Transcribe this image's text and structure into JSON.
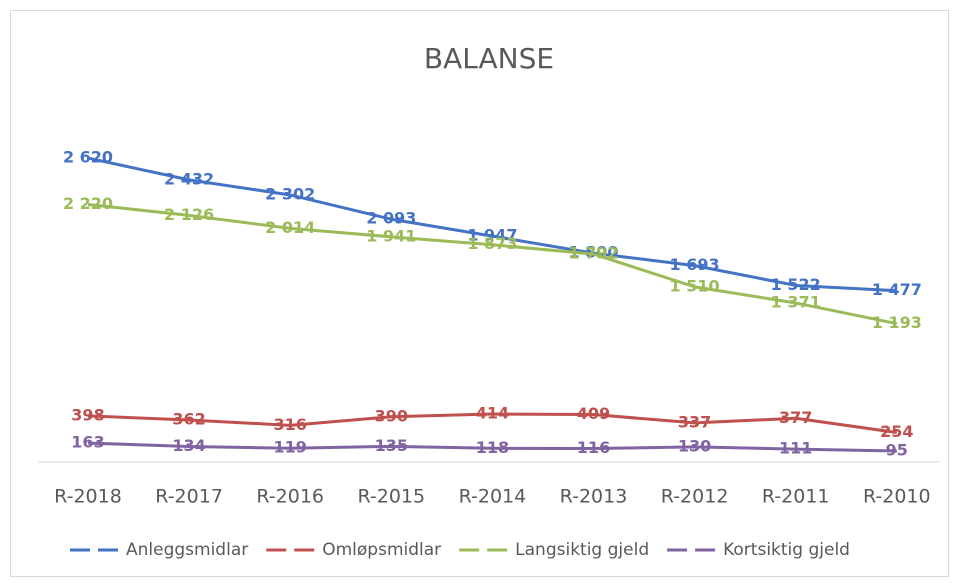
{
  "chart_data": {
    "type": "line",
    "title": "BALANSE",
    "categories": [
      "R-2018",
      "R-2017",
      "R-2016",
      "R-2015",
      "R-2014",
      "R-2013",
      "R-2012",
      "R-2011",
      "R-2010"
    ],
    "ylim": [
      0,
      3000
    ],
    "legend": "bottom",
    "series": [
      {
        "name": "Anleggsmidlar",
        "color": "#4472c4",
        "values": [
          2620,
          2432,
          2302,
          2093,
          1947,
          1800,
          1693,
          1522,
          1477
        ],
        "value_labels": [
          "2 620",
          "2 432",
          "2 302",
          "2 093",
          "1 947",
          "1 800",
          "1 693",
          "1 522",
          "1 477"
        ]
      },
      {
        "name": "Omløpsmidlar",
        "color": "#c0504d",
        "values": [
          398,
          362,
          316,
          390,
          414,
          409,
          337,
          377,
          254
        ]
      },
      {
        "name": "Langsiktig gjeld",
        "color": "#9bbb59",
        "values": [
          2220,
          2126,
          2014,
          1941,
          1873,
          1792,
          1510,
          1371,
          1193
        ],
        "value_labels": [
          "2 220",
          "2 126",
          "2 014",
          "1 941",
          "1 873",
          "1 792",
          "1 510",
          "1 371",
          "1 193"
        ]
      },
      {
        "name": "Kortsiktig gjeld",
        "color": "#8064a2",
        "values": [
          163,
          134,
          119,
          135,
          118,
          116,
          130,
          111,
          95
        ]
      }
    ]
  }
}
